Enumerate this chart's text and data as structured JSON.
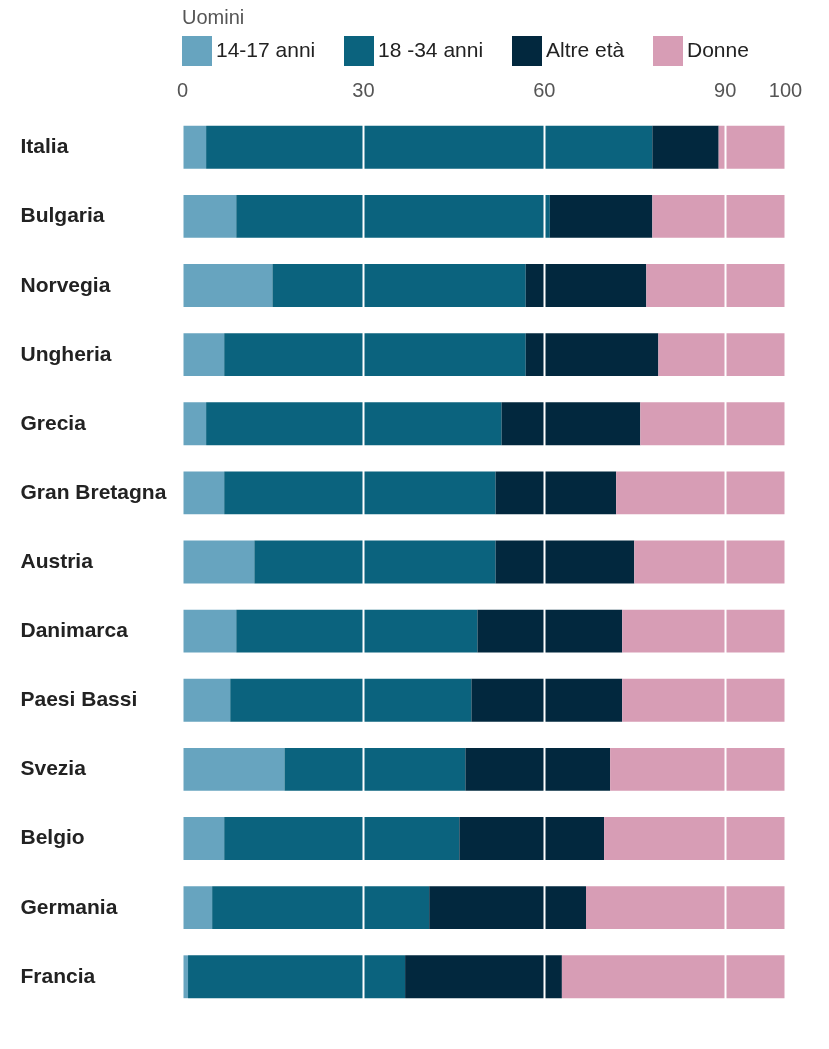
{
  "chart_data": {
    "type": "bar",
    "orientation": "horizontal",
    "stacked": true,
    "legend_title": "Uomini",
    "legend": "top left",
    "grid": "x",
    "categories": [
      "Italia",
      "Bulgaria",
      "Norvegia",
      "Ungheria",
      "Grecia",
      "Gran Bretagna",
      "Austria",
      "Danimarca",
      "Paesi Bassi",
      "Svezia",
      "Belgio",
      "Germania",
      "Francia"
    ],
    "xlim": [
      0,
      100
    ],
    "xticks": [
      0,
      30,
      60,
      90,
      100
    ],
    "series": [
      {
        "name": "14-17 anni",
        "color": "#67a4bf",
        "values": [
          4,
          9,
          15,
          7,
          4,
          7,
          12,
          9,
          8,
          17,
          7,
          5,
          1
        ]
      },
      {
        "name": "18 -34 anni",
        "color": "#0b637e",
        "values": [
          74,
          52,
          42,
          50,
          49,
          45,
          40,
          40,
          40,
          30,
          39,
          36,
          36
        ]
      },
      {
        "name": "Altre età",
        "color": "#02283e",
        "values": [
          11,
          17,
          20,
          22,
          23,
          20,
          23,
          24,
          25,
          24,
          24,
          26,
          26
        ]
      },
      {
        "name": "Donne",
        "color": "#d79db5",
        "values": [
          11,
          22,
          23,
          21,
          24,
          28,
          25,
          27,
          27,
          29,
          30,
          33,
          37
        ]
      }
    ]
  }
}
